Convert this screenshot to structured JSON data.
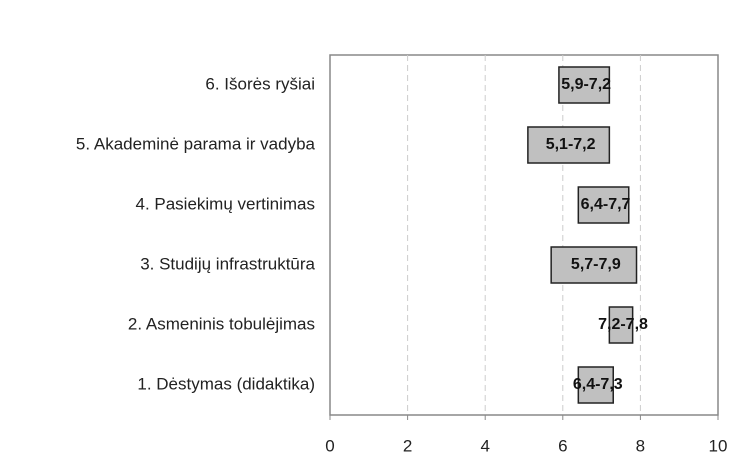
{
  "chart_data": {
    "type": "range_bar",
    "categories": [
      "1. Dėstymas (didaktika)",
      "2. Asmeninis tobulėjimas",
      "3. Studijų infrastruktūra",
      "4. Pasiekimų vertinimas",
      "5. Akademinė parama ir vadyba",
      "6. Išorės ryšiai"
    ],
    "low": [
      6.4,
      7.2,
      5.7,
      6.4,
      5.1,
      5.9
    ],
    "high": [
      7.3,
      7.8,
      7.9,
      7.7,
      7.2,
      7.2
    ],
    "value_labels": [
      "6,4-7,3",
      "7,2-7,8",
      "5,7-7,9",
      "6,4-7,7",
      "5,1-7,2",
      "5,9-7,2"
    ],
    "color": "#c0c0c0",
    "xlim": [
      0,
      10
    ],
    "xticks": [
      0,
      2,
      4,
      6,
      8,
      10
    ],
    "grid": true
  }
}
